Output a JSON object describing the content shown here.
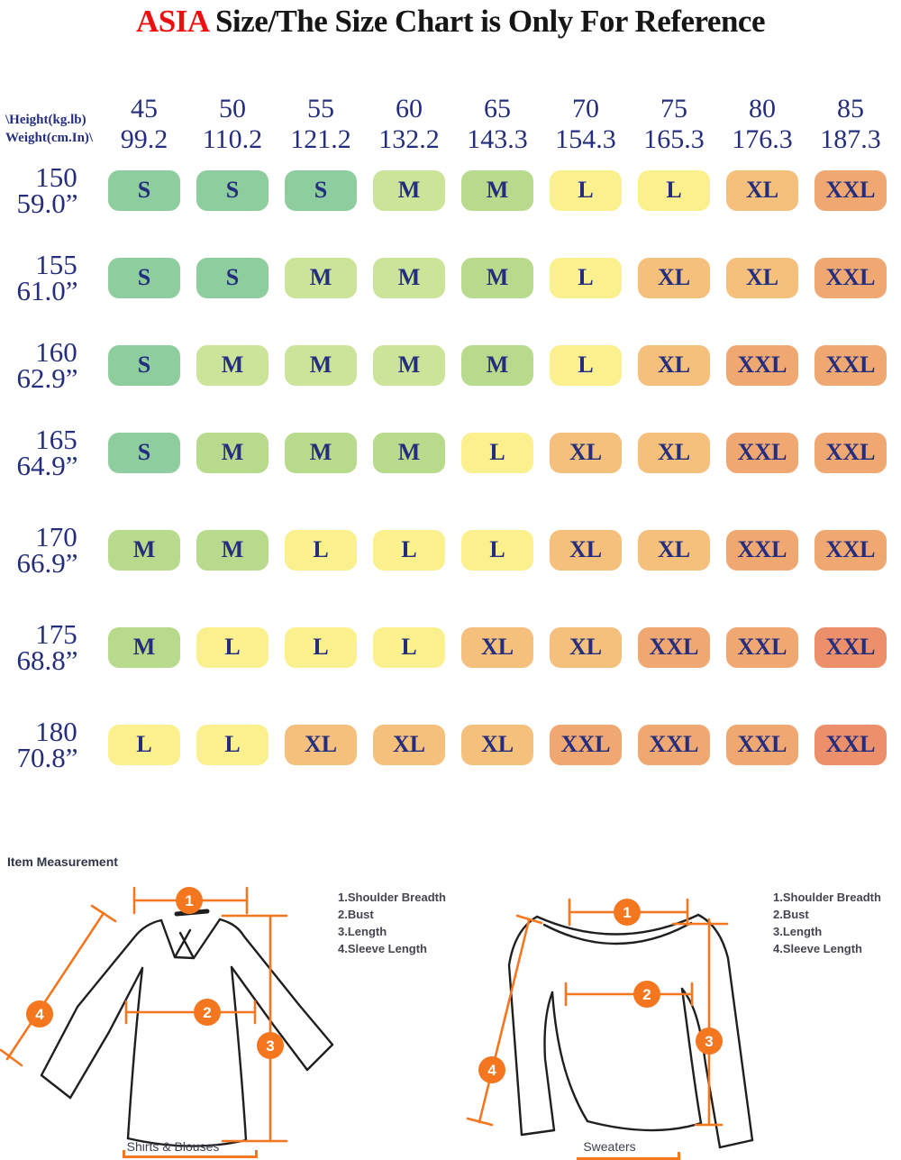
{
  "title": {
    "brand": "ASIA",
    "rest": " Size/The Size Chart is Only For Reference"
  },
  "colors": {
    "accent_orange": "#f4771f",
    "navy_text": "#252e7e",
    "title_red": "#ee1010"
  },
  "table": {
    "corner": {
      "line1": "\\Height(kg.lb)",
      "line2": "Weight(cm.In)\\"
    },
    "palette": {
      "g": "#8ecd9d",
      "lg": "#b8da8c",
      "lg2": "#cbe499",
      "y": "#faf18e",
      "o": "#f5c07c",
      "do": "#f0a873",
      "r": "#ec8f6b"
    },
    "columns": [
      {
        "kg": "45",
        "lb": "99.2"
      },
      {
        "kg": "50",
        "lb": "110.2"
      },
      {
        "kg": "55",
        "lb": "121.2"
      },
      {
        "kg": "60",
        "lb": "132.2"
      },
      {
        "kg": "65",
        "lb": "143.3"
      },
      {
        "kg": "70",
        "lb": "154.3"
      },
      {
        "kg": "75",
        "lb": "165.3"
      },
      {
        "kg": "80",
        "lb": "176.3"
      },
      {
        "kg": "85",
        "lb": "187.3"
      }
    ],
    "rows": [
      {
        "cm": "150",
        "inch": "59.0”",
        "cells": [
          {
            "label": "S",
            "color": "g"
          },
          {
            "label": "S",
            "color": "g"
          },
          {
            "label": "S",
            "color": "g"
          },
          {
            "label": "M",
            "color": "lg2"
          },
          {
            "label": "M",
            "color": "lg"
          },
          {
            "label": "L",
            "color": "y"
          },
          {
            "label": "L",
            "color": "y"
          },
          {
            "label": "XL",
            "color": "o"
          },
          {
            "label": "XXL",
            "color": "do"
          }
        ]
      },
      {
        "cm": "155",
        "inch": "61.0”",
        "cells": [
          {
            "label": "S",
            "color": "g"
          },
          {
            "label": "S",
            "color": "g"
          },
          {
            "label": "M",
            "color": "lg2"
          },
          {
            "label": "M",
            "color": "lg2"
          },
          {
            "label": "M",
            "color": "lg"
          },
          {
            "label": "L",
            "color": "y"
          },
          {
            "label": "XL",
            "color": "o"
          },
          {
            "label": "XL",
            "color": "o"
          },
          {
            "label": "XXL",
            "color": "do"
          }
        ]
      },
      {
        "cm": "160",
        "inch": "62.9”",
        "cells": [
          {
            "label": "S",
            "color": "g"
          },
          {
            "label": "M",
            "color": "lg2"
          },
          {
            "label": "M",
            "color": "lg2"
          },
          {
            "label": "M",
            "color": "lg2"
          },
          {
            "label": "M",
            "color": "lg"
          },
          {
            "label": "L",
            "color": "y"
          },
          {
            "label": "XL",
            "color": "o"
          },
          {
            "label": "XXL",
            "color": "do"
          },
          {
            "label": "XXL",
            "color": "do"
          }
        ]
      },
      {
        "cm": "165",
        "inch": "64.9”",
        "cells": [
          {
            "label": "S",
            "color": "g"
          },
          {
            "label": "M",
            "color": "lg"
          },
          {
            "label": "M",
            "color": "lg"
          },
          {
            "label": "M",
            "color": "lg"
          },
          {
            "label": "L",
            "color": "y"
          },
          {
            "label": "XL",
            "color": "o"
          },
          {
            "label": "XL",
            "color": "o"
          },
          {
            "label": "XXL",
            "color": "do"
          },
          {
            "label": "XXL",
            "color": "do"
          }
        ]
      },
      {
        "cm": "170",
        "inch": "66.9”",
        "cells": [
          {
            "label": "M",
            "color": "lg"
          },
          {
            "label": "M",
            "color": "lg"
          },
          {
            "label": "L",
            "color": "y"
          },
          {
            "label": "L",
            "color": "y"
          },
          {
            "label": "L",
            "color": "y"
          },
          {
            "label": "XL",
            "color": "o"
          },
          {
            "label": "XL",
            "color": "o"
          },
          {
            "label": "XXL",
            "color": "do"
          },
          {
            "label": "XXL",
            "color": "do"
          }
        ]
      },
      {
        "cm": "175",
        "inch": "68.8”",
        "cells": [
          {
            "label": "M",
            "color": "lg"
          },
          {
            "label": "L",
            "color": "y"
          },
          {
            "label": "L",
            "color": "y"
          },
          {
            "label": "L",
            "color": "y"
          },
          {
            "label": "XL",
            "color": "o"
          },
          {
            "label": "XL",
            "color": "o"
          },
          {
            "label": "XXL",
            "color": "do"
          },
          {
            "label": "XXL",
            "color": "do"
          },
          {
            "label": "XXL",
            "color": "r"
          }
        ]
      },
      {
        "cm": "180",
        "inch": "70.8”",
        "cells": [
          {
            "label": "L",
            "color": "y"
          },
          {
            "label": "L",
            "color": "y"
          },
          {
            "label": "XL",
            "color": "o"
          },
          {
            "label": "XL",
            "color": "o"
          },
          {
            "label": "XL",
            "color": "o"
          },
          {
            "label": "XXL",
            "color": "do"
          },
          {
            "label": "XXL",
            "color": "do"
          },
          {
            "label": "XXL",
            "color": "do"
          },
          {
            "label": "XXL",
            "color": "r"
          }
        ]
      }
    ]
  },
  "measurement": {
    "heading": "Item Measurement",
    "legend": [
      "1.Shoulder Breadth",
      "2.Bust",
      "3.Length",
      "4.Sleeve Length"
    ],
    "diagrams": [
      {
        "caption": "Shirts & Blouses",
        "markers": [
          "1",
          "2",
          "3",
          "4"
        ]
      },
      {
        "caption": "Sweaters",
        "markers": [
          "1",
          "2",
          "3",
          "4"
        ]
      }
    ]
  },
  "chart_data": {
    "type": "table",
    "title": "ASIA Size/The Size Chart is Only For Reference",
    "x_axis_label": "Weight (kg / lb)",
    "y_axis_label": "Height (cm / in)",
    "weight_kg": [
      45,
      50,
      55,
      60,
      65,
      70,
      75,
      80,
      85
    ],
    "weight_lb": [
      99.2,
      110.2,
      121.2,
      132.2,
      143.3,
      154.3,
      165.3,
      176.3,
      187.3
    ],
    "height_cm": [
      150,
      155,
      160,
      165,
      170,
      175,
      180
    ],
    "height_in": [
      "59.0”",
      "61.0”",
      "62.9”",
      "64.9”",
      "66.9”",
      "68.8”",
      "70.8”"
    ],
    "sizes": [
      [
        "S",
        "S",
        "S",
        "M",
        "M",
        "L",
        "L",
        "XL",
        "XXL"
      ],
      [
        "S",
        "S",
        "M",
        "M",
        "M",
        "L",
        "XL",
        "XL",
        "XXL"
      ],
      [
        "S",
        "M",
        "M",
        "M",
        "M",
        "L",
        "XL",
        "XXL",
        "XXL"
      ],
      [
        "S",
        "M",
        "M",
        "M",
        "L",
        "XL",
        "XL",
        "XXL",
        "XXL"
      ],
      [
        "M",
        "M",
        "L",
        "L",
        "L",
        "XL",
        "XL",
        "XXL",
        "XXL"
      ],
      [
        "M",
        "L",
        "L",
        "L",
        "XL",
        "XL",
        "XXL",
        "XXL",
        "XXL"
      ],
      [
        "L",
        "L",
        "XL",
        "XL",
        "XL",
        "XXL",
        "XXL",
        "XXL",
        "XXL"
      ]
    ]
  }
}
